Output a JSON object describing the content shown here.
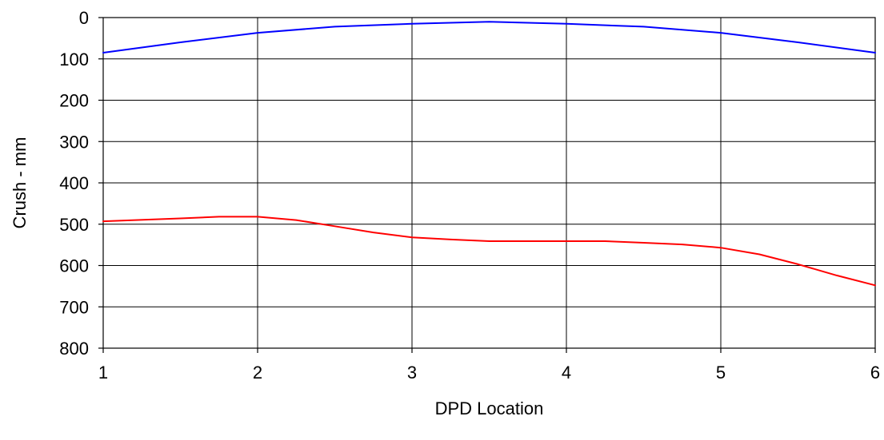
{
  "chart_data": {
    "type": "line",
    "title": "",
    "xlabel": "DPD Location",
    "ylabel": "Crush - mm",
    "xlim": [
      1,
      6
    ],
    "ylim": [
      0,
      800
    ],
    "y_inverted": true,
    "grid": true,
    "legend": "none",
    "x_ticks": [
      "1",
      "2",
      "3",
      "4",
      "5",
      "6"
    ],
    "y_ticks": [
      "0",
      "100",
      "200",
      "300",
      "400",
      "500",
      "600",
      "700",
      "800"
    ],
    "series": [
      {
        "color": "#0000ff",
        "x": [
          1,
          1.5,
          2,
          2.5,
          3,
          3.5,
          4,
          4.5,
          5,
          5.5,
          6
        ],
        "y": [
          85,
          60,
          37,
          22,
          15,
          10,
          15,
          22,
          37,
          60,
          85
        ]
      },
      {
        "color": "#ff0000",
        "x": [
          1,
          1.5,
          1.75,
          2,
          2.25,
          2.5,
          2.75,
          3,
          3.25,
          3.5,
          3.75,
          4,
          4.25,
          4.5,
          4.75,
          5,
          5.25,
          5.5,
          5.75,
          6
        ],
        "y": [
          493,
          486,
          482,
          482,
          490,
          505,
          520,
          532,
          537,
          541,
          541,
          541,
          541,
          545,
          549,
          557,
          573,
          597,
          624,
          648
        ]
      }
    ]
  }
}
